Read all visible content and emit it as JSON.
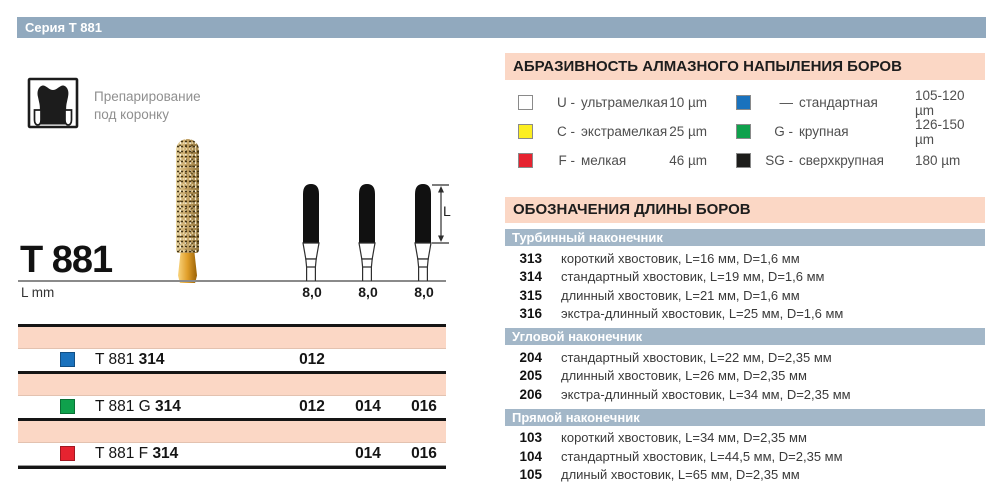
{
  "page_title": "Серия Т 881",
  "product": {
    "icon_caption": "Препарирование под коронку",
    "name": "T 881",
    "axis_label": "L mm",
    "dimension_label": "L",
    "bur_lengths": [
      "8,0",
      "8,0",
      "8,0"
    ]
  },
  "variants": {
    "rows": [
      {
        "swatch": "#1a72bd",
        "label": "T 881",
        "label_bold": "314",
        "sizes": [
          "012",
          "",
          ""
        ]
      },
      {
        "swatch": "#0fa14c",
        "label": "T 881 G",
        "label_bold": "314",
        "sizes": [
          "012",
          "014",
          "016"
        ]
      },
      {
        "swatch": "#e62330",
        "label": "T 881 F",
        "label_bold": "314",
        "sizes": [
          "",
          "014",
          "016"
        ]
      }
    ]
  },
  "abrasiveness": {
    "title": "АБРАЗИВНОСТЬ АЛМАЗНОГО НАПЫЛЕНИЯ БОРОВ",
    "columns": [
      {
        "items": [
          {
            "color": "#ffffff",
            "prefix": "U -",
            "name": "ультрамелкая",
            "value": "10 µm"
          },
          {
            "color": "#fcee21",
            "prefix": "C -",
            "name": "экстрамелкая",
            "value": "25 µm"
          },
          {
            "color": "#e62330",
            "prefix": "F -",
            "name": "мелкая",
            "value": "46 µm"
          }
        ]
      },
      {
        "items": [
          {
            "color": "#1a72bd",
            "prefix": "—",
            "name": "стандартная",
            "value": "105-120 µm"
          },
          {
            "color": "#0fa14c",
            "prefix": "G -",
            "name": "крупная",
            "value": "126-150 µm"
          },
          {
            "color": "#1d1d1b",
            "prefix": "SG -",
            "name": "сверхкрупная",
            "value": "180 µm"
          }
        ]
      }
    ]
  },
  "lengths": {
    "title": "ОБОЗНАЧЕНИЯ ДЛИНЫ БОРОВ",
    "groups": [
      {
        "header": "Турбинный наконечник",
        "rows": [
          {
            "code": "313",
            "desc": "короткий хвостовик, L=16 мм, D=1,6 мм"
          },
          {
            "code": "314",
            "desc": "стандартный хвостовик, L=19 мм, D=1,6 мм"
          },
          {
            "code": "315",
            "desc": "длинный хвостовик, L=21 мм, D=1,6 мм"
          },
          {
            "code": "316",
            "desc": "экстра-длинный хвостовик, L=25 мм, D=1,6 мм"
          }
        ]
      },
      {
        "header": "Угловой наконечник",
        "rows": [
          {
            "code": "204",
            "desc": "стандартный хвостовик, L=22 мм, D=2,35 мм"
          },
          {
            "code": "205",
            "desc": "длинный хвостовик, L=26 мм, D=2,35 мм"
          },
          {
            "code": "206",
            "desc": "экстра-длинный хвостовик, L=34 мм, D=2,35 мм"
          }
        ]
      },
      {
        "header": "Прямой наконечник",
        "rows": [
          {
            "code": "103",
            "desc": "короткий хвостовик, L=34 мм, D=2,35 мм"
          },
          {
            "code": "104",
            "desc": "стандартный хвостовик, L=44,5 мм, D=2,35 мм"
          },
          {
            "code": "105",
            "desc": "длиный хвостовик, L=65 мм, D=2,35 мм"
          }
        ]
      }
    ]
  }
}
